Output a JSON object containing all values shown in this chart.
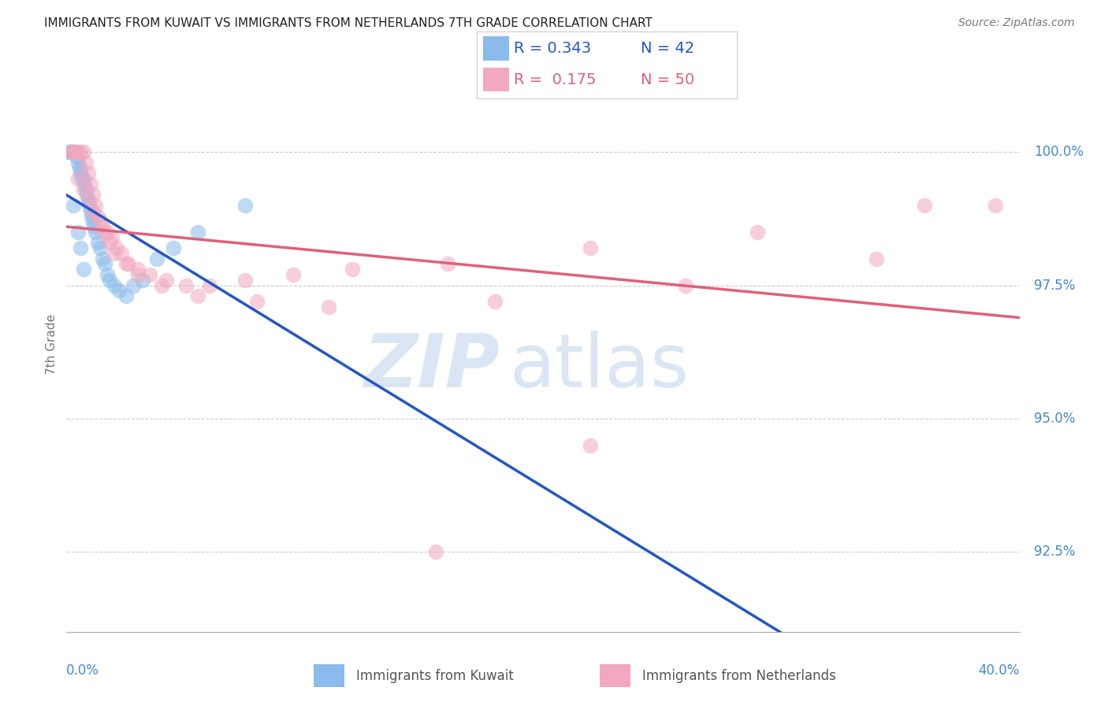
{
  "title": "IMMIGRANTS FROM KUWAIT VS IMMIGRANTS FROM NETHERLANDS 7TH GRADE CORRELATION CHART",
  "source": "Source: ZipAtlas.com",
  "ylabel": "7th Grade",
  "y_ticks": [
    92.5,
    95.0,
    97.5,
    100.0
  ],
  "y_tick_labels": [
    "92.5%",
    "95.0%",
    "97.5%",
    "100.0%"
  ],
  "xlim": [
    0.0,
    40.0
  ],
  "ylim": [
    91.0,
    101.8
  ],
  "legend_R_kuwait": "0.343",
  "legend_N_kuwait": "42",
  "legend_R_netherlands": "0.175",
  "legend_N_netherlands": "50",
  "color_kuwait": "#8abbec",
  "color_netherlands": "#f2a8be",
  "color_line_kuwait": "#2255cc",
  "color_line_netherlands": "#e0607a",
  "color_axis_ticks": "#4488cc",
  "kuwait_x": [
    0.1,
    0.15,
    0.2,
    0.25,
    0.3,
    0.35,
    0.4,
    0.45,
    0.5,
    0.55,
    0.6,
    0.65,
    0.7,
    0.75,
    0.8,
    0.85,
    0.9,
    0.95,
    1.0,
    1.05,
    1.1,
    1.15,
    1.2,
    1.3,
    1.4,
    1.5,
    1.6,
    1.7,
    1.8,
    2.0,
    2.2,
    2.5,
    2.8,
    3.2,
    3.8,
    4.5,
    5.5,
    7.5,
    0.3,
    0.5,
    0.6,
    0.7
  ],
  "kuwait_y": [
    100.0,
    100.0,
    100.0,
    100.0,
    100.0,
    100.0,
    100.0,
    99.9,
    99.8,
    99.7,
    99.6,
    99.5,
    99.5,
    99.4,
    99.3,
    99.2,
    99.1,
    99.0,
    98.9,
    98.8,
    98.7,
    98.6,
    98.5,
    98.3,
    98.2,
    98.0,
    97.9,
    97.7,
    97.6,
    97.5,
    97.4,
    97.3,
    97.5,
    97.6,
    98.0,
    98.2,
    98.5,
    99.0,
    99.0,
    98.5,
    98.2,
    97.8
  ],
  "netherlands_x": [
    0.2,
    0.3,
    0.4,
    0.5,
    0.6,
    0.7,
    0.8,
    0.9,
    1.0,
    1.1,
    1.2,
    1.3,
    1.5,
    1.7,
    1.9,
    2.1,
    2.3,
    2.6,
    3.0,
    3.5,
    4.2,
    5.0,
    6.0,
    7.5,
    9.5,
    12.0,
    16.0,
    22.0,
    29.0,
    36.0,
    0.5,
    0.7,
    0.9,
    1.1,
    1.4,
    1.6,
    1.8,
    2.0,
    2.5,
    3.0,
    4.0,
    5.5,
    8.0,
    11.0,
    18.0,
    26.0,
    34.0,
    39.0,
    22.0,
    15.5
  ],
  "netherlands_y": [
    100.0,
    100.0,
    100.0,
    100.0,
    100.0,
    100.0,
    99.8,
    99.6,
    99.4,
    99.2,
    99.0,
    98.8,
    98.6,
    98.5,
    98.4,
    98.2,
    98.1,
    97.9,
    97.8,
    97.7,
    97.6,
    97.5,
    97.5,
    97.6,
    97.7,
    97.8,
    97.9,
    98.2,
    98.5,
    99.0,
    99.5,
    99.3,
    99.1,
    98.9,
    98.7,
    98.5,
    98.3,
    98.1,
    97.9,
    97.7,
    97.5,
    97.3,
    97.2,
    97.1,
    97.2,
    97.5,
    98.0,
    99.0,
    94.5,
    92.5
  ]
}
